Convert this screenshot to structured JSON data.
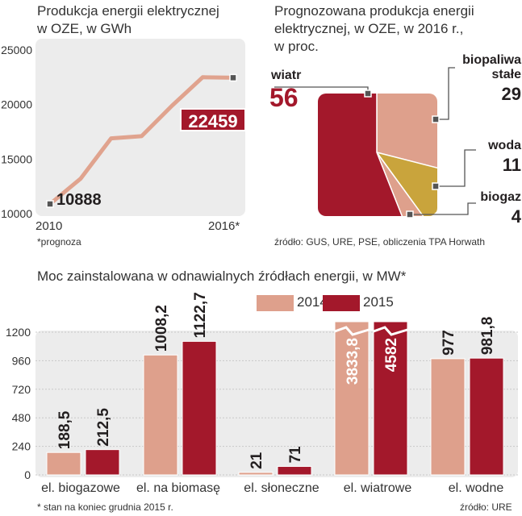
{
  "colors": {
    "salmon": "#dea08c",
    "crimson": "#a3182b",
    "gold": "#c9a43c",
    "panel": "#ececec",
    "line": "#e0a38e",
    "text": "#231f20"
  },
  "line_chart": {
    "title_line1": "Produkcja energii elektrycznej",
    "title_line2": "w OZE, w GWh",
    "y_ticks": [
      "25000",
      "20000",
      "15000",
      "10000"
    ],
    "x_start_label": "2010",
    "x_end_label": "2016*",
    "start_value_label": "10888",
    "end_value_label": "22459",
    "footnote": "*prognoza"
  },
  "pie_chart": {
    "title_line1": "Prognozowana produkcja energii",
    "title_line2": "elektrycznej, w OZE, w 2016 r.,",
    "title_line3": "w proc.",
    "slices": [
      {
        "label": "wiatr",
        "value_label": "56"
      },
      {
        "label_line1": "biopaliwa",
        "label_line2": "stałe",
        "value_label": "29"
      },
      {
        "label": "woda",
        "value_label": "11"
      },
      {
        "label": "biogaz",
        "value_label": "4"
      }
    ],
    "source": "źródło: GUS, URE, PSE, obliczenia TPA Horwath"
  },
  "bar_chart": {
    "title": "Moc zainstalowana w odnawialnych źródłach energii, w MW*",
    "legend": [
      {
        "label": "2014",
        "color": "#dea08c"
      },
      {
        "label": "2015",
        "color": "#a3182b"
      }
    ],
    "y_ticks": [
      "1200",
      "960",
      "720",
      "480",
      "240",
      "0"
    ],
    "categories": [
      "el. biogazowe",
      "el. na biomasę",
      "el. słoneczne",
      "el. wiatrowe",
      "el. wodne"
    ],
    "value_labels_2014": [
      "188,5",
      "1008,2",
      "21",
      "3833,8",
      "977"
    ],
    "value_labels_2015": [
      "212,5",
      "1122,7",
      "71",
      "4582",
      "981,8"
    ],
    "footnote": "* stan na koniec grudnia 2015 r.",
    "source": "źródło: URE"
  },
  "chart_data": [
    {
      "type": "line",
      "title": "Produkcja energii elektrycznej w OZE, w GWh",
      "xlabel": "",
      "ylabel": "",
      "x": [
        2010,
        2011,
        2012,
        2013,
        2014,
        2015,
        2016
      ],
      "values": [
        10888,
        13200,
        16900,
        17100,
        19900,
        22500,
        22459
      ],
      "ylim": [
        10000,
        25000
      ],
      "grid": false
    },
    {
      "type": "pie",
      "title": "Prognozowana produkcja energii elektrycznej, w OZE, w 2016 r., w proc.",
      "categories": [
        "wiatr",
        "biopaliwa stałe",
        "woda",
        "biogaz"
      ],
      "values": [
        56,
        29,
        11,
        4
      ]
    },
    {
      "type": "bar",
      "title": "Moc zainstalowana w odnawialnych źródłach energii, w MW*",
      "categories": [
        "el. biogazowe",
        "el. na biomasę",
        "el. słoneczne",
        "el. wiatrowe",
        "el. wodne"
      ],
      "series": [
        {
          "name": "2014",
          "values": [
            188.5,
            1008.2,
            21,
            3833.8,
            977
          ]
        },
        {
          "name": "2015",
          "values": [
            212.5,
            1122.7,
            71,
            4582,
            981.8
          ]
        }
      ],
      "ylim": [
        0,
        1200
      ],
      "axis_break": true,
      "legend": "top-right",
      "grid": true
    }
  ]
}
